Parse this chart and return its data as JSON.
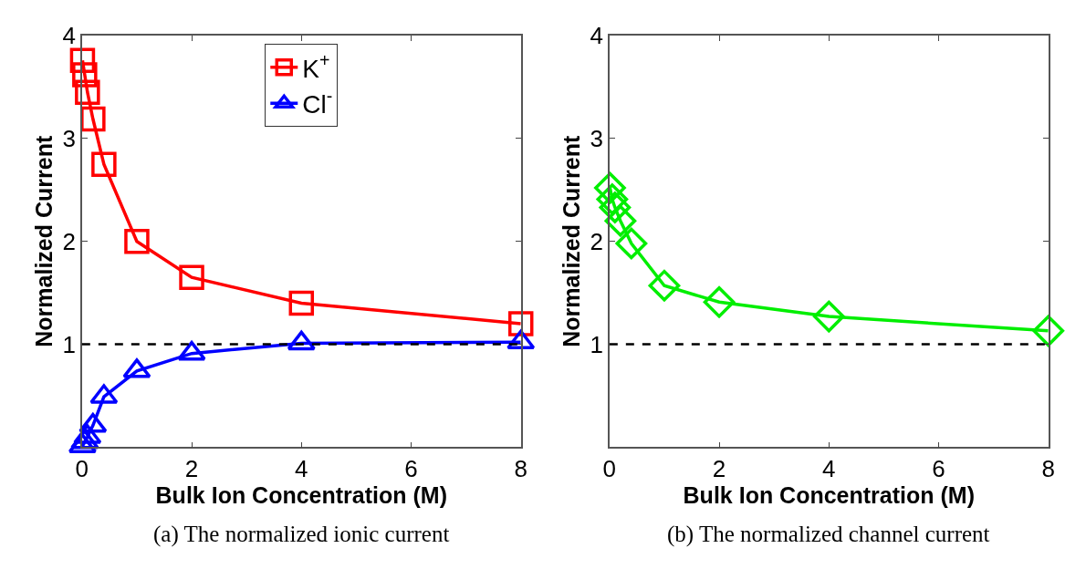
{
  "chart_data": [
    {
      "type": "line",
      "xlabel": "Bulk Ion Concentration (M)",
      "ylabel": "Normalized Current",
      "x": [
        0.01,
        0.05,
        0.1,
        0.2,
        0.4,
        1,
        2,
        4,
        8
      ],
      "xlim": [
        0,
        8
      ],
      "xticks": [
        0,
        2,
        4,
        6,
        8
      ],
      "ylim": [
        0,
        4
      ],
      "yticks": [
        {
          "value": 0,
          "label": null
        },
        1,
        2,
        3,
        4
      ],
      "legend": "top",
      "line_style": "solid",
      "series": [
        {
          "name": "K$^{+}$",
          "color": "#ff0000",
          "marker": "square",
          "values": [
            3.76,
            3.62,
            3.45,
            3.19,
            2.75,
            2.0,
            1.65,
            1.4,
            1.2
          ]
        },
        {
          "name": "Cl$^{-}$",
          "color": "#0000ff",
          "marker": "triangle",
          "values": [
            0.01,
            0.05,
            0.1,
            0.21,
            0.49,
            0.74,
            0.91,
            1.01,
            1.02
          ]
        }
      ],
      "ref_lines": [
        {
          "axis": "y",
          "value": 1,
          "color": "#000000",
          "line_style": "dashed"
        }
      ],
      "annotations": [
        "(a) The normalized ionic current"
      ]
    },
    {
      "type": "line",
      "xlabel": "Bulk Ion Concentration (M)",
      "ylabel": "Normalized Current",
      "x": [
        0.01,
        0.05,
        0.1,
        0.2,
        0.4,
        1,
        2,
        4,
        8
      ],
      "xlim": [
        0,
        8
      ],
      "xticks": [
        0,
        2,
        4,
        6,
        8
      ],
      "ylim": [
        0,
        4
      ],
      "yticks": [
        {
          "value": 0,
          "label": null
        },
        1,
        2,
        3,
        4
      ],
      "line_style": "solid",
      "series": [
        {
          "color": "#00ee00",
          "marker": "diamond",
          "values": [
            2.52,
            2.41,
            2.33,
            2.2,
            1.98,
            1.57,
            1.41,
            1.27,
            1.13
          ]
        }
      ],
      "ref_lines": [
        {
          "axis": "y",
          "value": 1,
          "color": "#000000",
          "line_style": "dashed"
        }
      ],
      "annotations": [
        "(b) The normalized channel current"
      ]
    }
  ]
}
